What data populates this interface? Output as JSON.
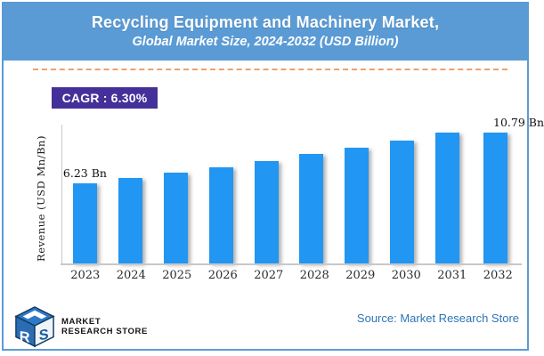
{
  "header": {
    "title": "Recycling Equipment and Machinery Market,",
    "subtitle": "Global Market Size, 2024-2032 (USD Billion)",
    "bg_color": "#5B9BD5"
  },
  "cagr_badge": {
    "label": "CAGR : 6.30%",
    "bg_color": "#45309A"
  },
  "chart_data": {
    "type": "bar",
    "title": "Recycling Equipment and Machinery Market, Global Market Size, 2024-2032 (USD Billion)",
    "categories": [
      "2023",
      "2024",
      "2025",
      "2026",
      "2027",
      "2028",
      "2029",
      "2030",
      "2031",
      "2032"
    ],
    "values": [
      6.23,
      6.62,
      7.04,
      7.48,
      7.95,
      8.45,
      8.99,
      9.55,
      10.15,
      10.79
    ],
    "data_labels": [
      "6.23 Bn",
      "",
      "",
      "",
      "",
      "",
      "",
      "",
      "",
      "10.79 Bn"
    ],
    "unit": "USD Billion",
    "xlabel": "",
    "ylabel": "Revenue (USD Mn/Bn)",
    "ylim": [
      0,
      11.4
    ],
    "grid": "off",
    "legend": "none",
    "bar_color": "#2196F3",
    "axis_color": "#c8c8c8"
  },
  "footer": {
    "logo": {
      "icon": "mrs-cube-logo",
      "line1": "MARKET",
      "line2": "RESEARCH STORE"
    },
    "source": "Source: Market Research Store",
    "source_color": "#2E75B6"
  }
}
